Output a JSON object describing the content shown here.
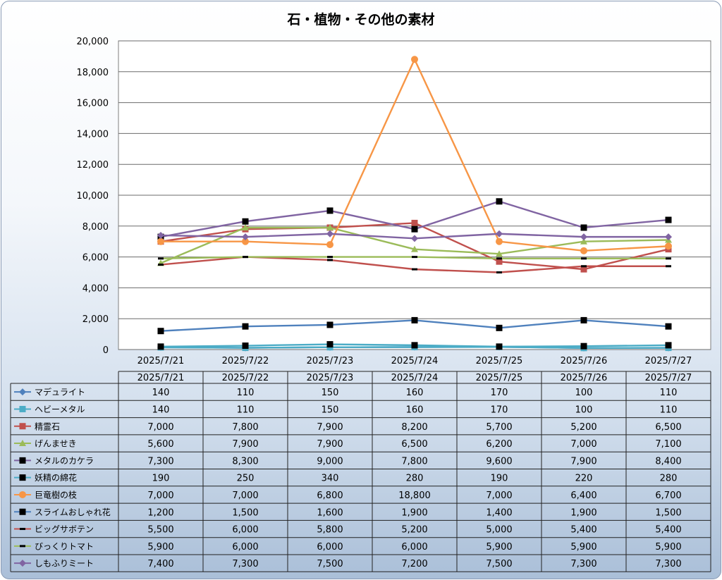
{
  "colors": {
    "マデュライト": "#4f81bd",
    "ヘビーメタル": "#4bacc6",
    "精霊石": "#c0504d",
    "げんませき": "#9bbb59",
    "メタルのカケラ": "#8064a2",
    "妖精の綿花": "#4bacc6",
    "巨竜樹の枝": "#f79646",
    "スライムおしゃれ花": "#4f81bd",
    "ビッグサボテン": "#c0504d",
    "びっくりトマト": "#9bbb59",
    "しもふりミート": "#8064a2"
  },
  "chart_data": {
    "type": "line",
    "title": "石・植物・その他の素材",
    "categories": [
      "2025/7/21",
      "2025/7/22",
      "2025/7/23",
      "2025/7/24",
      "2025/7/25",
      "2025/7/26",
      "2025/7/27"
    ],
    "ylim": [
      0,
      20000
    ],
    "yticks": [
      "0",
      "2,000",
      "4,000",
      "6,000",
      "8,000",
      "10,000",
      "12,000",
      "14,000",
      "16,000",
      "18,000",
      "20,000"
    ],
    "grid": true,
    "legend": "data-table",
    "series": [
      {
        "name": "マデュライト",
        "marker": "diamond",
        "values": [
          140,
          110,
          150,
          160,
          170,
          100,
          110
        ]
      },
      {
        "name": "ヘビーメタル",
        "marker": "square",
        "values": [
          140,
          110,
          150,
          160,
          170,
          100,
          110
        ]
      },
      {
        "name": "精霊石",
        "marker": "square",
        "values": [
          7000,
          7800,
          7900,
          8200,
          5700,
          5200,
          6500
        ]
      },
      {
        "name": "げんませき",
        "marker": "triangle",
        "values": [
          5600,
          7900,
          7900,
          6500,
          6200,
          7000,
          7100
        ]
      },
      {
        "name": "メタルのカケラ",
        "marker": "square-black",
        "values": [
          7300,
          8300,
          9000,
          7800,
          9600,
          7900,
          8400
        ]
      },
      {
        "name": "妖精の綿花",
        "marker": "square-black",
        "values": [
          190,
          250,
          340,
          280,
          190,
          220,
          280
        ]
      },
      {
        "name": "巨竜樹の枝",
        "marker": "circle",
        "values": [
          7000,
          7000,
          6800,
          18800,
          7000,
          6400,
          6700
        ]
      },
      {
        "name": "スライムおしゃれ花",
        "marker": "square-black",
        "values": [
          1200,
          1500,
          1600,
          1900,
          1400,
          1900,
          1500
        ]
      },
      {
        "name": "ビッグサボテン",
        "marker": "dash",
        "values": [
          5500,
          6000,
          5800,
          5200,
          5000,
          5400,
          5400
        ]
      },
      {
        "name": "びっくりトマト",
        "marker": "dash",
        "values": [
          5900,
          6000,
          6000,
          6000,
          5900,
          5900,
          5900
        ]
      },
      {
        "name": "しもふりミート",
        "marker": "diamond",
        "values": [
          7400,
          7300,
          7500,
          7200,
          7500,
          7300,
          7300
        ]
      }
    ],
    "table": {
      "rows": [
        [
          "140",
          "110",
          "150",
          "160",
          "170",
          "100",
          "110"
        ],
        [
          "140",
          "110",
          "150",
          "160",
          "170",
          "100",
          "110"
        ],
        [
          "7,000",
          "7,800",
          "7,900",
          "8,200",
          "5,700",
          "5,200",
          "6,500"
        ],
        [
          "5,600",
          "7,900",
          "7,900",
          "6,500",
          "6,200",
          "7,000",
          "7,100"
        ],
        [
          "7,300",
          "8,300",
          "9,000",
          "7,800",
          "9,600",
          "7,900",
          "8,400"
        ],
        [
          "190",
          "250",
          "340",
          "280",
          "190",
          "220",
          "280"
        ],
        [
          "7,000",
          "7,000",
          "6,800",
          "18,800",
          "7,000",
          "6,400",
          "6,700"
        ],
        [
          "1,200",
          "1,500",
          "1,600",
          "1,900",
          "1,400",
          "1,900",
          "1,500"
        ],
        [
          "5,500",
          "6,000",
          "5,800",
          "5,200",
          "5,000",
          "5,400",
          "5,400"
        ],
        [
          "5,900",
          "6,000",
          "6,000",
          "6,000",
          "5,900",
          "5,900",
          "5,900"
        ],
        [
          "7,400",
          "7,300",
          "7,500",
          "7,200",
          "7,500",
          "7,300",
          "7,300"
        ]
      ]
    }
  }
}
